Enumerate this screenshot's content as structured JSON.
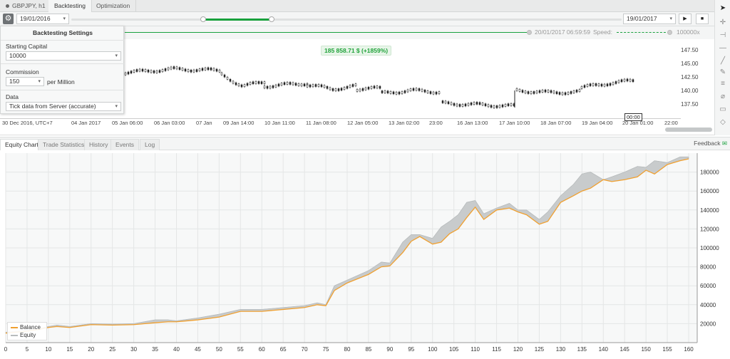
{
  "top_tabs": {
    "symbol": "GBPJPY, h1",
    "backtesting": "Backtesting",
    "optimization": "Optimization"
  },
  "toolbar": {
    "start_date": "19/01/2016",
    "end_date": "19/01/2017",
    "play_icon": "play-icon",
    "stop_icon": "stop-icon"
  },
  "progress": {
    "current_time": "20/01/2017 06:59:59",
    "speed_label": "Speed:",
    "speed_value": "100000x"
  },
  "settings": {
    "title": "Backtesting Settings",
    "starting_capital_label": "Starting Capital",
    "starting_capital_value": "10000",
    "commission_label": "Commission",
    "commission_value": "150",
    "commission_unit": "per Million",
    "data_label": "Data",
    "data_value": "Tick data from Server (accurate)"
  },
  "price_chart": {
    "pnl": "185 858.71 $ (+1859%)",
    "price_labels": [
      "147.50",
      "145.00",
      "142.50",
      "140.00",
      "137.50"
    ],
    "time_labels": [
      "30 Dec 2016, UTC+7",
      "04 Jan 2017",
      "05 Jan 06:00",
      "06 Jan 03:00",
      "07 Jan",
      "09 Jan 14:00",
      "10 Jan 11:00",
      "11 Jan 08:00",
      "12 Jan 05:00",
      "13 Jan 02:00",
      "23:00",
      "16 Jan 13:00",
      "17 Jan 10:00",
      "18 Jan 07:00",
      "19 Jan 04:00",
      "20 Jan 01:00",
      "22:00"
    ],
    "cursor_label": "00:00"
  },
  "bottom_tabs": [
    "Equity Chart",
    "Trade Statistics",
    "History",
    "Events",
    "Log"
  ],
  "feedback": "Feedback",
  "colors": {
    "green": "#19a13d",
    "balance": "#f0a030",
    "equity": "#b8bcbd"
  },
  "chart_data": {
    "type": "line",
    "title": "",
    "xlabel": "",
    "ylabel": "",
    "xlim": [
      0,
      162
    ],
    "ylim": [
      0,
      200000
    ],
    "x_ticks": [
      0,
      5,
      10,
      15,
      20,
      25,
      30,
      35,
      40,
      45,
      50,
      55,
      60,
      65,
      70,
      75,
      80,
      85,
      90,
      95,
      100,
      105,
      110,
      115,
      120,
      125,
      130,
      135,
      140,
      145,
      150,
      155,
      160
    ],
    "y_ticks": [
      20000,
      40000,
      60000,
      80000,
      100000,
      120000,
      140000,
      160000,
      180000
    ],
    "grid": true,
    "legend_position": "bottom-left",
    "series": [
      {
        "name": "Balance",
        "color": "#f0a030",
        "x": [
          0,
          5,
          8,
          10,
          12,
          15,
          20,
          25,
          30,
          35,
          38,
          40,
          45,
          50,
          55,
          60,
          65,
          70,
          73,
          75,
          77,
          80,
          85,
          88,
          90,
          93,
          95,
          97,
          100,
          102,
          104,
          106,
          108,
          110,
          112,
          115,
          118,
          120,
          122,
          125,
          127,
          130,
          133,
          135,
          137,
          140,
          142,
          145,
          148,
          150,
          152,
          155,
          158,
          160
        ],
        "y": [
          10000,
          12000,
          14000,
          16000,
          17000,
          16000,
          19000,
          18500,
          19000,
          21000,
          22000,
          22000,
          24000,
          27000,
          33000,
          33000,
          35000,
          37000,
          40000,
          39000,
          55000,
          63000,
          72000,
          80000,
          81000,
          95000,
          107000,
          112000,
          104000,
          106000,
          115000,
          120000,
          132000,
          143000,
          130000,
          140000,
          142000,
          138000,
          135000,
          125000,
          128000,
          148000,
          155000,
          160000,
          163000,
          172000,
          170000,
          172000,
          175000,
          182000,
          178000,
          188000,
          192000,
          194000
        ]
      },
      {
        "name": "Equity",
        "color": "#b8bcbd",
        "x": [
          0,
          5,
          8,
          10,
          12,
          15,
          20,
          25,
          30,
          35,
          38,
          40,
          45,
          50,
          55,
          60,
          65,
          70,
          73,
          75,
          77,
          80,
          85,
          88,
          90,
          93,
          95,
          97,
          100,
          102,
          104,
          106,
          108,
          110,
          112,
          115,
          118,
          120,
          122,
          125,
          127,
          130,
          133,
          135,
          137,
          140,
          142,
          145,
          148,
          150,
          152,
          155,
          158,
          160
        ],
        "y": [
          11000,
          13000,
          15000,
          17000,
          18500,
          17000,
          20000,
          19500,
          20000,
          24000,
          24000,
          23000,
          26000,
          30000,
          35000,
          35000,
          37000,
          39000,
          42000,
          40000,
          60000,
          66000,
          76000,
          85000,
          84000,
          106000,
          114000,
          114000,
          110000,
          122000,
          128000,
          135000,
          148000,
          150000,
          136000,
          142000,
          147000,
          140000,
          140000,
          130000,
          138000,
          155000,
          167000,
          178000,
          180000,
          172000,
          175000,
          180000,
          186000,
          185000,
          192000,
          190000,
          196000,
          196000
        ]
      }
    ]
  }
}
